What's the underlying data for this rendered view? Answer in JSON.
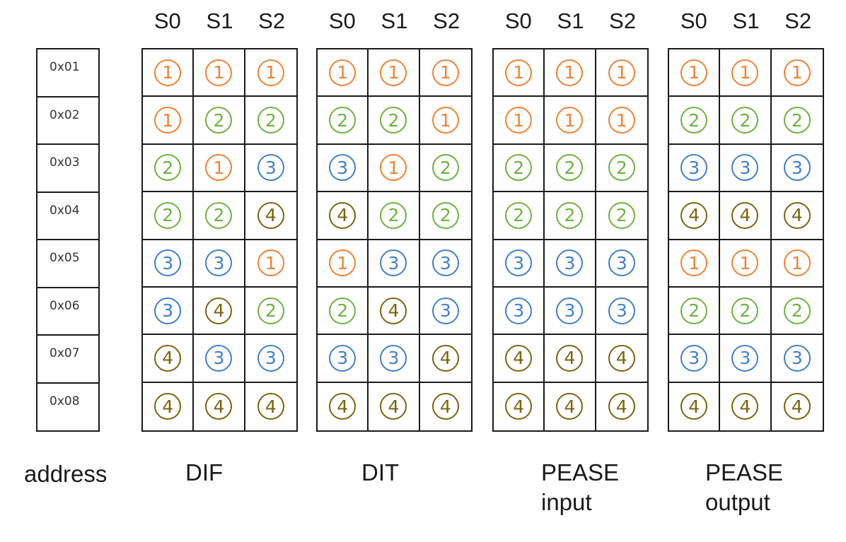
{
  "headers": [
    "S0",
    "S1",
    "S2"
  ],
  "addresses": [
    "0x01",
    "0x02",
    "0x03",
    "0x04",
    "0x05",
    "0x06",
    "0x07",
    "0x08"
  ],
  "address_label": "address",
  "colors": {
    "1": "#ef8233",
    "2": "#6cb33f",
    "3": "#3f7fcc",
    "4": "#7a6410"
  },
  "glyphs": {
    "1": "1",
    "2": "2",
    "3": "3",
    "4": "4"
  },
  "tables": [
    {
      "label_lines": [
        "DIF"
      ],
      "rows": [
        [
          1,
          1,
          1
        ],
        [
          1,
          2,
          2
        ],
        [
          2,
          1,
          3
        ],
        [
          2,
          2,
          4
        ],
        [
          3,
          3,
          1
        ],
        [
          3,
          4,
          2
        ],
        [
          4,
          3,
          3
        ],
        [
          4,
          4,
          4
        ]
      ]
    },
    {
      "label_lines": [
        "DIT"
      ],
      "rows": [
        [
          1,
          1,
          1
        ],
        [
          2,
          2,
          1
        ],
        [
          3,
          1,
          2
        ],
        [
          4,
          2,
          2
        ],
        [
          1,
          3,
          3
        ],
        [
          2,
          4,
          3
        ],
        [
          3,
          3,
          4
        ],
        [
          4,
          4,
          4
        ]
      ]
    },
    {
      "label_lines": [
        "PEASE",
        "input"
      ],
      "rows": [
        [
          1,
          1,
          1
        ],
        [
          1,
          1,
          1
        ],
        [
          2,
          2,
          2
        ],
        [
          2,
          2,
          2
        ],
        [
          3,
          3,
          3
        ],
        [
          3,
          3,
          3
        ],
        [
          4,
          4,
          4
        ],
        [
          4,
          4,
          4
        ]
      ]
    },
    {
      "label_lines": [
        "PEASE",
        "output"
      ],
      "rows": [
        [
          1,
          1,
          1
        ],
        [
          2,
          2,
          2
        ],
        [
          3,
          3,
          3
        ],
        [
          4,
          4,
          4
        ],
        [
          1,
          1,
          1
        ],
        [
          2,
          2,
          2
        ],
        [
          3,
          3,
          3
        ],
        [
          4,
          4,
          4
        ]
      ]
    }
  ]
}
